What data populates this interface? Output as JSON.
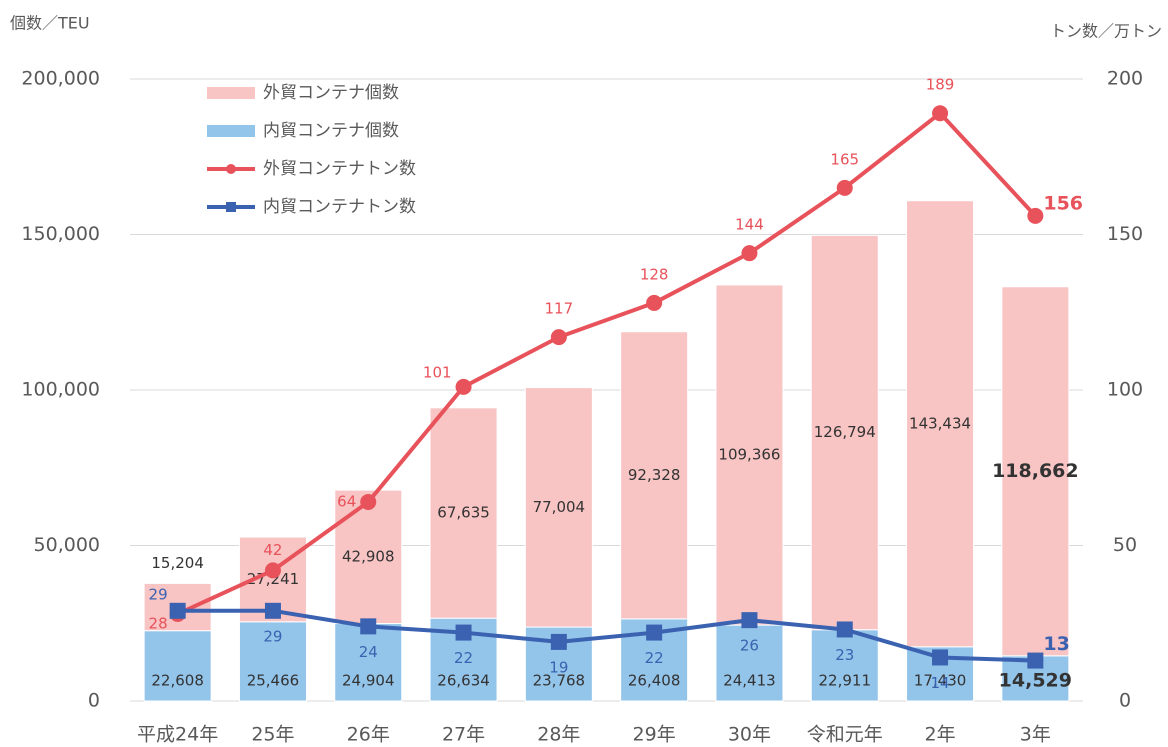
{
  "chart_data": {
    "type": "combo",
    "y_label": "個数／TEU",
    "y2_label": "トン数／万トン",
    "categories": [
      "平成24年",
      "25年",
      "26年",
      "27年",
      "28年",
      "29年",
      "30年",
      "令和元年",
      "2年",
      "3年"
    ],
    "series": [
      {
        "name": "外貿コンテナ個数",
        "type": "bar",
        "color": "#f8c4c4",
        "values": [
          15204,
          27241,
          42908,
          67635,
          77004,
          92328,
          109366,
          126794,
          143434,
          118662
        ],
        "value_labels": [
          "15,204",
          "27,241",
          "42,908",
          "67,635",
          "77,004",
          "92,328",
          "109,366",
          "126,794",
          "143,434",
          "118,662"
        ]
      },
      {
        "name": "内貿コンテナ個数",
        "type": "bar",
        "color": "#93c4ea",
        "values": [
          22608,
          25466,
          24904,
          26634,
          23768,
          26408,
          24413,
          22911,
          17430,
          14529
        ],
        "value_labels": [
          "22,608",
          "25,466",
          "24,904",
          "26,634",
          "23,768",
          "26,408",
          "24,413",
          "22,911",
          "17,430",
          "14,529"
        ]
      },
      {
        "name": "外貿コンテナトン数",
        "type": "line",
        "axis": "y2",
        "color": "#e8525a",
        "marker": "circle",
        "values": [
          28,
          42,
          64,
          101,
          117,
          128,
          144,
          165,
          189,
          156
        ]
      },
      {
        "name": "内貿コンテナトン数",
        "type": "line",
        "axis": "y2",
        "color": "#3a62b0",
        "marker": "square",
        "values": [
          29,
          29,
          24,
          22,
          19,
          22,
          26,
          23,
          14,
          13
        ]
      }
    ],
    "stack_order": [
      1,
      0
    ],
    "ylim": [
      0,
      200000
    ],
    "yticks": [
      0,
      {
        "value": 50000,
        "label": "50,000"
      },
      {
        "value": 100000,
        "label": "100,000"
      },
      {
        "value": 150000,
        "label": "150,000"
      },
      {
        "value": 200000,
        "label": "200,000"
      }
    ],
    "y2lim": [
      0,
      200
    ],
    "y2ticks": [
      0,
      50,
      100,
      150,
      200
    ],
    "grid": true,
    "legend": "upper left"
  }
}
